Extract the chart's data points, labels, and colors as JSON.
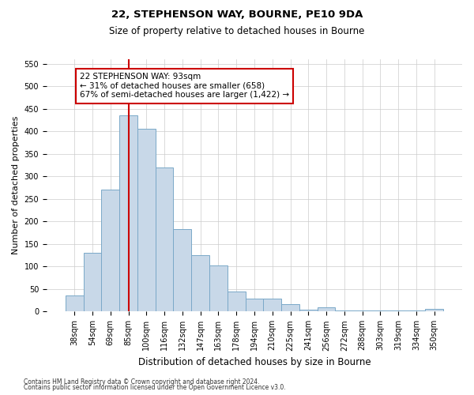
{
  "title1": "22, STEPHENSON WAY, BOURNE, PE10 9DA",
  "title2": "Size of property relative to detached houses in Bourne",
  "xlabel": "Distribution of detached houses by size in Bourne",
  "ylabel": "Number of detached properties",
  "categories": [
    "38sqm",
    "54sqm",
    "69sqm",
    "85sqm",
    "100sqm",
    "116sqm",
    "132sqm",
    "147sqm",
    "163sqm",
    "178sqm",
    "194sqm",
    "210sqm",
    "225sqm",
    "241sqm",
    "256sqm",
    "272sqm",
    "288sqm",
    "303sqm",
    "319sqm",
    "334sqm",
    "350sqm"
  ],
  "values": [
    35,
    130,
    271,
    435,
    405,
    320,
    183,
    125,
    103,
    44,
    28,
    28,
    16,
    5,
    9,
    3,
    3,
    3,
    3,
    3,
    6
  ],
  "bar_color": "#c8d8e8",
  "bar_edge_color": "#7aa8c8",
  "grid_color": "#cccccc",
  "annotation_line1": "22 STEPHENSON WAY: 93sqm",
  "annotation_line2": "← 31% of detached houses are smaller (658)",
  "annotation_line3": "67% of semi-detached houses are larger (1,422) →",
  "annotation_box_color": "#ffffff",
  "annotation_box_edge": "#cc0000",
  "redline_color": "#cc0000",
  "ylim": [
    0,
    560
  ],
  "yticks": [
    0,
    50,
    100,
    150,
    200,
    250,
    300,
    350,
    400,
    450,
    500,
    550
  ],
  "footer1": "Contains HM Land Registry data © Crown copyright and database right 2024.",
  "footer2": "Contains public sector information licensed under the Open Government Licence v3.0.",
  "bg_color": "#ffffff",
  "title1_fontsize": 9.5,
  "title2_fontsize": 8.5,
  "ylabel_fontsize": 8,
  "xlabel_fontsize": 8.5,
  "tick_fontsize": 7,
  "annotation_fontsize": 7.5,
  "footer_fontsize": 5.5
}
